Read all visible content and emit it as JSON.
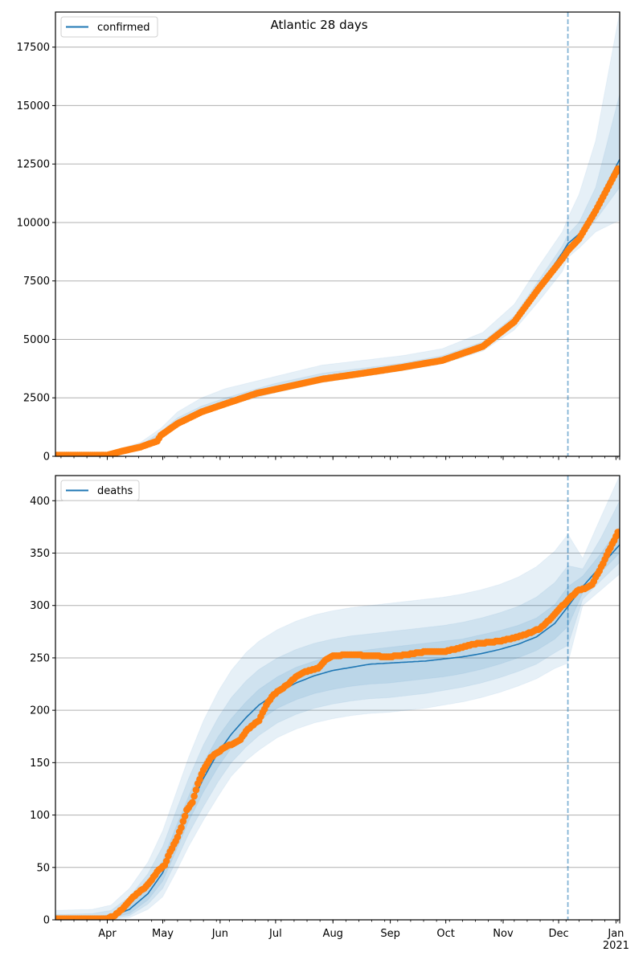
{
  "figure": {
    "title": "Atlantic 28 days"
  },
  "colors": {
    "model": "#1f77b4",
    "observed": "#ff7f0e",
    "band": "#1f77b4",
    "grid": "#b0b0b0",
    "forecast_line": "#1f77b4"
  },
  "chart_data": [
    {
      "type": "line",
      "panel": "top",
      "title": "Atlantic 28 days",
      "legend": [
        "confirmed"
      ],
      "legend_position": "top-left",
      "xlabel": "",
      "ylabel": "",
      "ylim": [
        0,
        19000
      ],
      "yticks": [
        0,
        2500,
        5000,
        7500,
        10000,
        12500,
        15000,
        17500
      ],
      "ytick_labels": [
        "0",
        "2500",
        "5000",
        "7500",
        "10000",
        "12500",
        "15000",
        "17500"
      ],
      "grid": "y",
      "x_unit": "days since 2020-03-04",
      "xlim": [
        0,
        305
      ],
      "forecast_start_day": 277,
      "series": [
        {
          "name": "confirmed",
          "kind": "model-median",
          "days": [
            0,
            28,
            35,
            46,
            55,
            57,
            66,
            79,
            92,
            109,
            118,
            144,
            166,
            187,
            209,
            231,
            248,
            261,
            274,
            277,
            283,
            292,
            305
          ],
          "values": [
            50,
            60,
            220,
            430,
            700,
            950,
            1500,
            2000,
            2350,
            2800,
            2950,
            3400,
            3650,
            3850,
            4150,
            4750,
            5800,
            7200,
            8700,
            9100,
            9500,
            10700,
            12700
          ]
        },
        {
          "name": "observed",
          "kind": "scatter",
          "days": [
            0,
            28,
            35,
            46,
            55,
            57,
            66,
            79,
            92,
            109,
            118,
            144,
            166,
            187,
            209,
            231,
            248,
            261,
            274,
            277,
            283,
            292,
            304
          ],
          "values": [
            50,
            50,
            200,
            400,
            650,
            900,
            1400,
            1900,
            2250,
            2700,
            2850,
            3300,
            3550,
            3800,
            4100,
            4700,
            5750,
            7150,
            8450,
            8800,
            9300,
            10500,
            12300
          ]
        },
        {
          "name": "band-outer",
          "kind": "interval",
          "days": [
            0,
            28,
            46,
            57,
            66,
            79,
            92,
            118,
            144,
            187,
            209,
            231,
            248,
            261,
            274,
            277,
            283,
            292,
            305
          ],
          "lower": [
            0,
            0,
            350,
            850,
            1350,
            1850,
            2150,
            2700,
            3150,
            3650,
            3950,
            4500,
            5400,
            6600,
            7900,
            8500,
            8900,
            9600,
            10100
          ],
          "upper": [
            120,
            150,
            600,
            1200,
            1900,
            2500,
            2900,
            3400,
            3900,
            4300,
            4600,
            5300,
            6500,
            8100,
            9600,
            10200,
            11200,
            13500,
            19000
          ]
        },
        {
          "name": "band-inner",
          "kind": "interval",
          "days": [
            0,
            28,
            46,
            57,
            66,
            79,
            92,
            118,
            144,
            187,
            209,
            231,
            248,
            261,
            274,
            277,
            283,
            292,
            305
          ],
          "lower": [
            30,
            30,
            400,
            900,
            1420,
            1920,
            2260,
            2830,
            3300,
            3760,
            4060,
            4650,
            5650,
            7000,
            8400,
            8800,
            9250,
            10100,
            11500
          ],
          "upper": [
            80,
            90,
            480,
            1050,
            1650,
            2150,
            2500,
            3100,
            3550,
            3980,
            4300,
            4900,
            6000,
            7500,
            9000,
            9500,
            10000,
            11500,
            15500
          ]
        }
      ]
    },
    {
      "type": "line",
      "panel": "bottom",
      "legend": [
        "deaths"
      ],
      "legend_position": "top-left",
      "xlabel": "",
      "ylabel": "",
      "ylim": [
        0,
        424
      ],
      "yticks": [
        0,
        50,
        100,
        150,
        200,
        250,
        300,
        350,
        400
      ],
      "ytick_labels": [
        "0",
        "50",
        "100",
        "150",
        "200",
        "250",
        "300",
        "350",
        "400"
      ],
      "grid": "y",
      "x_unit": "days since 2020-03-04",
      "xlim": [
        0,
        305
      ],
      "xtick_labels": [
        "Apr",
        "May",
        "Jun",
        "Jul",
        "Aug",
        "Sep",
        "Oct",
        "Nov",
        "Dec",
        "Jan\n2021"
      ],
      "xtick_days": [
        28,
        58,
        89,
        119,
        150,
        181,
        211,
        242,
        272,
        303
      ],
      "forecast_start_day": 277,
      "series": [
        {
          "name": "deaths",
          "kind": "model-median",
          "days": [
            0,
            20,
            30,
            40,
            50,
            58,
            65,
            72,
            80,
            88,
            95,
            103,
            110,
            120,
            130,
            140,
            150,
            160,
            170,
            180,
            190,
            200,
            210,
            220,
            230,
            240,
            250,
            260,
            270,
            277,
            285,
            295,
            305
          ],
          "values": [
            1,
            1,
            3,
            10,
            25,
            45,
            75,
            105,
            135,
            160,
            177,
            193,
            205,
            217,
            226,
            233,
            238,
            241,
            244,
            245,
            246,
            247,
            249,
            251,
            254,
            258,
            263,
            270,
            283,
            299,
            318,
            338,
            358
          ]
        },
        {
          "name": "observed",
          "kind": "scatter",
          "days": [
            0,
            28,
            32,
            36,
            40,
            44,
            48,
            52,
            56,
            59,
            62,
            65,
            68,
            71,
            74,
            77,
            80,
            84,
            88,
            92,
            96,
            100,
            103,
            106,
            110,
            114,
            118,
            122,
            126,
            130,
            134,
            138,
            142,
            146,
            150,
            160,
            170,
            180,
            190,
            200,
            210,
            220,
            225,
            230,
            240,
            250,
            255,
            262,
            268,
            272,
            277,
            282,
            286,
            290,
            293,
            296,
            299,
            302,
            304
          ],
          "values": [
            1,
            1,
            4,
            10,
            18,
            25,
            30,
            38,
            48,
            52,
            65,
            75,
            88,
            105,
            112,
            130,
            143,
            155,
            160,
            165,
            168,
            172,
            180,
            185,
            190,
            205,
            215,
            220,
            225,
            232,
            236,
            238,
            240,
            248,
            252,
            253,
            252,
            251,
            253,
            256,
            256,
            260,
            263,
            264,
            266,
            270,
            273,
            278,
            288,
            296,
            305,
            314,
            316,
            320,
            330,
            340,
            352,
            362,
            370
          ]
        },
        {
          "name": "band-outer",
          "kind": "interval",
          "days": [
            0,
            20,
            30,
            40,
            50,
            58,
            65,
            72,
            80,
            88,
            95,
            103,
            110,
            120,
            130,
            140,
            150,
            160,
            170,
            180,
            190,
            200,
            210,
            220,
            230,
            240,
            250,
            260,
            270,
            277,
            285,
            295,
            305
          ],
          "lower": [
            0,
            0,
            0,
            2,
            10,
            22,
            45,
            70,
            95,
            118,
            137,
            152,
            162,
            174,
            182,
            188,
            192,
            195,
            197,
            198,
            200,
            202,
            205,
            208,
            212,
            217,
            223,
            230,
            240,
            245,
            300,
            315,
            330
          ],
          "upper": [
            9,
            10,
            14,
            30,
            55,
            85,
            120,
            155,
            190,
            218,
            238,
            255,
            266,
            277,
            285,
            291,
            295,
            298,
            300,
            302,
            304,
            306,
            308,
            311,
            315,
            320,
            327,
            337,
            352,
            368,
            345,
            385,
            424
          ]
        },
        {
          "name": "band-mid",
          "kind": "interval",
          "days": [
            0,
            20,
            30,
            40,
            50,
            58,
            65,
            72,
            80,
            88,
            95,
            103,
            110,
            120,
            130,
            140,
            150,
            160,
            170,
            180,
            190,
            200,
            210,
            220,
            230,
            240,
            250,
            260,
            270,
            277,
            285,
            295,
            305
          ],
          "lower": [
            0,
            0,
            1,
            4,
            15,
            30,
            55,
            82,
            108,
            132,
            150,
            165,
            176,
            188,
            196,
            202,
            206,
            209,
            211,
            212,
            214,
            216,
            219,
            222,
            226,
            231,
            237,
            244,
            255,
            262,
            306,
            324,
            341
          ],
          "upper": [
            5,
            6,
            9,
            22,
            44,
            70,
            103,
            135,
            167,
            193,
            212,
            228,
            239,
            250,
            258,
            264,
            268,
            271,
            273,
            275,
            277,
            279,
            281,
            284,
            288,
            293,
            299,
            308,
            322,
            338,
            335,
            365,
            400
          ]
        },
        {
          "name": "band-inner",
          "kind": "interval",
          "days": [
            0,
            20,
            30,
            40,
            50,
            58,
            65,
            72,
            80,
            88,
            95,
            103,
            110,
            120,
            130,
            140,
            150,
            160,
            170,
            180,
            190,
            200,
            210,
            220,
            230,
            240,
            250,
            260,
            270,
            277,
            285,
            295,
            305
          ],
          "lower": [
            0,
            0,
            2,
            6,
            19,
            37,
            65,
            94,
            122,
            146,
            164,
            179,
            190,
            202,
            210,
            216,
            220,
            223,
            225,
            226,
            228,
            230,
            232,
            235,
            239,
            244,
            250,
            257,
            268,
            280,
            312,
            332,
            350
          ],
          "upper": [
            3,
            3,
            5,
            15,
            33,
            57,
            88,
            118,
            150,
            175,
            192,
            208,
            220,
            232,
            241,
            247,
            252,
            255,
            258,
            260,
            262,
            264,
            266,
            268,
            272,
            276,
            281,
            288,
            301,
            318,
            328,
            350,
            375
          ]
        }
      ]
    }
  ]
}
